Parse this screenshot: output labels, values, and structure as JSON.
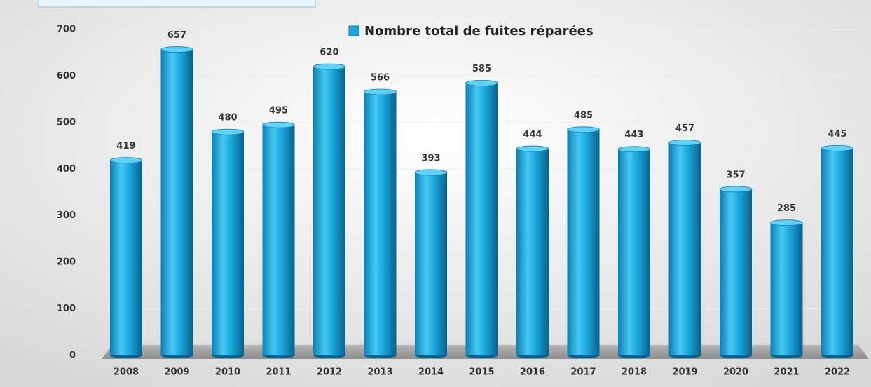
{
  "chart_data": {
    "type": "bar",
    "categories": [
      "2008",
      "2009",
      "2010",
      "2011",
      "2012",
      "2013",
      "2014",
      "2015",
      "2016",
      "2017",
      "2018",
      "2019",
      "2020",
      "2021",
      "2022"
    ],
    "series": [
      {
        "name": "Nombre total de fuites réparées",
        "color": "#1aa7dc",
        "values": [
          419,
          657,
          480,
          495,
          620,
          566,
          393,
          585,
          444,
          485,
          443,
          457,
          357,
          285,
          445
        ]
      }
    ],
    "ylim": [
      0,
      700
    ],
    "yticks": [
      0,
      100,
      200,
      300,
      400,
      500,
      600,
      700
    ],
    "grid": true,
    "legend": "top"
  }
}
